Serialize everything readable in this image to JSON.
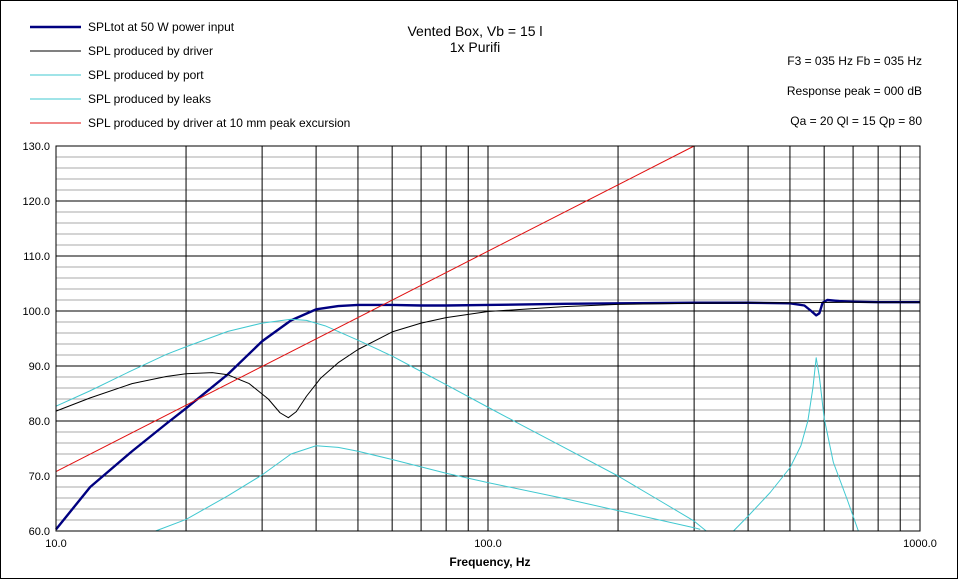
{
  "chart_data": {
    "type": "line",
    "title": "Vented Box, Vb = 15 l",
    "subtitle": "1x Purifi",
    "xlabel": "Frequency, Hz",
    "ylabel": "",
    "x_scale": "log",
    "xlim": [
      10,
      1000
    ],
    "ylim": [
      60,
      130
    ],
    "x_tick_labels": [
      {
        "value": 10,
        "label": "10.0"
      },
      {
        "value": 100,
        "label": "100.0"
      },
      {
        "value": 1000,
        "label": "1000.0"
      }
    ],
    "y_tick_labels": [
      {
        "value": 60,
        "label": "60.0"
      },
      {
        "value": 70,
        "label": "70.0"
      },
      {
        "value": 80,
        "label": "80.0"
      },
      {
        "value": 90,
        "label": "90.0"
      },
      {
        "value": 100,
        "label": "100.0"
      },
      {
        "value": 110,
        "label": "110.0"
      },
      {
        "value": 120,
        "label": "120.0"
      },
      {
        "value": 130,
        "label": "130.0"
      }
    ],
    "y_minor_step": 2,
    "grid": true,
    "legend_position": "top-left",
    "annotations": [
      "F3 = 035  Hz   Fb = 035  Hz",
      "Response peak = 000  dB",
      "Qa = 20   Ql = 15   Qp = 80"
    ],
    "series": [
      {
        "name": "SPLtot at 50 W power input",
        "color": "#000080",
        "width": 2.4,
        "points": [
          [
            10,
            60.3
          ],
          [
            12,
            68
          ],
          [
            15,
            74.5
          ],
          [
            18,
            79.5
          ],
          [
            20,
            82.3
          ],
          [
            25,
            88.5
          ],
          [
            30,
            94.5
          ],
          [
            35,
            98.3
          ],
          [
            40,
            100.3
          ],
          [
            45,
            100.9
          ],
          [
            50,
            101.1
          ],
          [
            60,
            101.1
          ],
          [
            70,
            101.0
          ],
          [
            80,
            101.0
          ],
          [
            100,
            101.1
          ],
          [
            150,
            101.3
          ],
          [
            200,
            101.4
          ],
          [
            300,
            101.5
          ],
          [
            400,
            101.5
          ],
          [
            500,
            101.4
          ],
          [
            540,
            101.0
          ],
          [
            560,
            100.0
          ],
          [
            575,
            99.2
          ],
          [
            585,
            99.6
          ],
          [
            595,
            101.5
          ],
          [
            610,
            102.0
          ],
          [
            650,
            101.8
          ],
          [
            700,
            101.7
          ],
          [
            800,
            101.6
          ],
          [
            1000,
            101.6
          ]
        ]
      },
      {
        "name": "SPL produced by driver",
        "color": "#000000",
        "width": 1,
        "points": [
          [
            10,
            81.8
          ],
          [
            12,
            84.2
          ],
          [
            15,
            86.8
          ],
          [
            18,
            88.1
          ],
          [
            20,
            88.6
          ],
          [
            23,
            88.8
          ],
          [
            25,
            88.4
          ],
          [
            28,
            86.8
          ],
          [
            31,
            84
          ],
          [
            33,
            81.5
          ],
          [
            34.5,
            80.6
          ],
          [
            36,
            81.7
          ],
          [
            38,
            84.5
          ],
          [
            41,
            87.8
          ],
          [
            45,
            90.6
          ],
          [
            50,
            93
          ],
          [
            60,
            96.2
          ],
          [
            70,
            97.8
          ],
          [
            80,
            98.8
          ],
          [
            100,
            99.9
          ],
          [
            150,
            100.8
          ],
          [
            200,
            101.2
          ],
          [
            300,
            101.4
          ],
          [
            400,
            101.5
          ],
          [
            500,
            101.5
          ],
          [
            700,
            101.6
          ],
          [
            1000,
            101.6
          ]
        ]
      },
      {
        "name": "SPL produced by port",
        "color": "#40C8D0",
        "width": 1,
        "points": [
          [
            10,
            82.7
          ],
          [
            12,
            85.5
          ],
          [
            15,
            89.2
          ],
          [
            18,
            92.1
          ],
          [
            20,
            93.5
          ],
          [
            25,
            96.3
          ],
          [
            30,
            97.8
          ],
          [
            35,
            98.5
          ],
          [
            38,
            98.3
          ],
          [
            42,
            97.3
          ],
          [
            50,
            94.7
          ],
          [
            60,
            91.8
          ],
          [
            70,
            89
          ],
          [
            80,
            86.6
          ],
          [
            100,
            82.5
          ],
          [
            120,
            79.2
          ],
          [
            150,
            75.2
          ],
          [
            200,
            70
          ],
          [
            250,
            65.5
          ],
          [
            300,
            61.8
          ],
          [
            320,
            60
          ]
        ]
      },
      {
        "name": "SPL produced by leaks",
        "color": "#40C8D0",
        "width": 1,
        "points": [
          [
            17,
            60
          ],
          [
            20,
            62.1
          ],
          [
            25,
            66.4
          ],
          [
            30,
            70.2
          ],
          [
            35,
            74
          ],
          [
            40,
            75.5
          ],
          [
            45,
            75.2
          ],
          [
            50,
            74.5
          ],
          [
            60,
            73
          ],
          [
            80,
            70.5
          ],
          [
            100,
            68.8
          ],
          [
            150,
            65.9
          ],
          [
            200,
            63.7
          ],
          [
            300,
            60.6
          ],
          [
            310,
            60.3
          ]
        ]
      },
      {
        "name": "",
        "color": "#40C8D0",
        "width": 1,
        "points": [
          [
            370,
            60
          ],
          [
            400,
            62.7
          ],
          [
            450,
            67
          ],
          [
            500,
            71.5
          ],
          [
            530,
            75.5
          ],
          [
            550,
            80
          ],
          [
            565,
            86
          ],
          [
            575,
            91.5
          ],
          [
            585,
            88
          ],
          [
            600,
            80.5
          ],
          [
            630,
            72.5
          ],
          [
            680,
            65.5
          ],
          [
            720,
            60
          ]
        ]
      },
      {
        "name": "",
        "color": "#40C8D0",
        "width": 1,
        "points": [
          [
            1000,
            62
          ],
          [
            1000,
            60
          ]
        ]
      },
      {
        "name": "SPL produced by driver at 10 mm peak excursion",
        "color": "#E01010",
        "width": 1,
        "points": [
          [
            10,
            70.8
          ],
          [
            300,
            130
          ]
        ]
      }
    ]
  }
}
